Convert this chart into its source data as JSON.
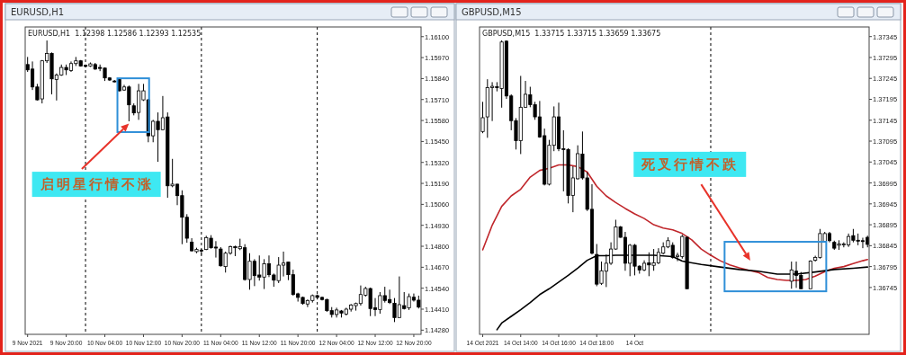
{
  "chart_data": [
    {
      "type": "candlestick",
      "title": "EURUSD,H1",
      "subtitle": "EURUSD,H1  1.12398 1.12586 1.12393 1.12535",
      "x": [
        "2021-11-09T12:00",
        "2021-11-09T13:00",
        "2021-11-09T14:00",
        "2021-11-09T15:00",
        "2021-11-09T16:00",
        "2021-11-09T17:00",
        "2021-11-09T18:00",
        "2021-11-09T19:00",
        "2021-11-09T20:00",
        "2021-11-09T21:00",
        "2021-11-09T22:00",
        "2021-11-09T23:00",
        "2021-11-10T00:00",
        "2021-11-10T01:00",
        "2021-11-10T02:00",
        "2021-11-10T03:00",
        "2021-11-10T04:00",
        "2021-11-10T05:00",
        "2021-11-10T06:00",
        "2021-11-10T07:00",
        "2021-11-10T08:00",
        "2021-11-10T09:00",
        "2021-11-10T10:00",
        "2021-11-10T11:00",
        "2021-11-10T12:00",
        "2021-11-10T13:00",
        "2021-11-10T14:00",
        "2021-11-10T15:00",
        "2021-11-10T16:00",
        "2021-11-10T17:00",
        "2021-11-10T18:00",
        "2021-11-10T19:00",
        "2021-11-10T20:00",
        "2021-11-10T21:00",
        "2021-11-10T22:00",
        "2021-11-10T23:00",
        "2021-11-11T00:00",
        "2021-11-11T01:00",
        "2021-11-11T02:00",
        "2021-11-11T03:00",
        "2021-11-11T04:00",
        "2021-11-11T05:00",
        "2021-11-11T06:00",
        "2021-11-11T07:00",
        "2021-11-11T08:00",
        "2021-11-11T09:00",
        "2021-11-11T10:00",
        "2021-11-11T11:00",
        "2021-11-11T12:00",
        "2021-11-11T13:00",
        "2021-11-11T14:00",
        "2021-11-11T15:00",
        "2021-11-11T16:00",
        "2021-11-11T17:00",
        "2021-11-11T18:00",
        "2021-11-11T19:00",
        "2021-11-11T20:00",
        "2021-11-11T21:00",
        "2021-11-11T22:00",
        "2021-11-11T23:00",
        "2021-11-12T00:00",
        "2021-11-12T01:00",
        "2021-11-12T02:00",
        "2021-11-12T03:00",
        "2021-11-12T04:00",
        "2021-11-12T05:00",
        "2021-11-12T06:00",
        "2021-11-12T07:00",
        "2021-11-12T08:00",
        "2021-11-12T09:00",
        "2021-11-12T10:00",
        "2021-11-12T11:00",
        "2021-11-12T12:00",
        "2021-11-12T13:00",
        "2021-11-12T14:00",
        "2021-11-12T15:00",
        "2021-11-12T16:00",
        "2021-11-12T17:00",
        "2021-11-12T18:00",
        "2021-11-12T19:00",
        "2021-11-12T20:00",
        "2021-11-12T21:00"
      ],
      "ohlc": [
        [
          1.15927,
          1.15974,
          1.15881,
          1.15894
        ],
        [
          1.15899,
          1.15946,
          1.15769,
          1.15788
        ],
        [
          1.15788,
          1.15807,
          1.15704,
          1.15708
        ],
        [
          1.15714,
          1.15955,
          1.15686,
          1.1595
        ],
        [
          1.1595,
          1.16076,
          1.15937,
          1.15996
        ],
        [
          1.15996,
          1.16002,
          1.15742,
          1.15838
        ],
        [
          1.15834,
          1.15872,
          1.15704,
          1.15862
        ],
        [
          1.15862,
          1.15927,
          1.15857,
          1.15909
        ],
        [
          1.15909,
          1.15927,
          1.15862,
          1.15894
        ],
        [
          1.1589,
          1.15946,
          1.15881,
          1.15933
        ],
        [
          1.15933,
          1.15974,
          1.15918,
          1.1595
        ],
        [
          1.1595,
          1.15955,
          1.15914,
          1.15918
        ],
        [
          1.15922,
          1.15927,
          1.15909,
          1.15916
        ],
        [
          1.15918,
          1.1594,
          1.15912,
          1.15931
        ],
        [
          1.15927,
          1.15937,
          1.15894,
          1.15899
        ],
        [
          1.15909,
          1.15927,
          1.15886,
          1.15903
        ],
        [
          1.15905,
          1.15909,
          1.15825,
          1.15844
        ],
        [
          1.15844,
          1.15849,
          1.15825,
          1.15831
        ],
        [
          1.15825,
          1.15831,
          1.15816,
          1.15821
        ],
        [
          1.15834,
          1.15838,
          1.1576,
          1.15764
        ],
        [
          1.15769,
          1.15801,
          1.15764,
          1.15788
        ],
        [
          1.15788,
          1.15797,
          1.15575,
          1.15677
        ],
        [
          1.15671,
          1.15686,
          1.15612,
          1.15627
        ],
        [
          1.1563,
          1.15807,
          1.15584,
          1.15764
        ],
        [
          1.15708,
          1.15807,
          1.15701,
          1.15764
        ],
        [
          1.15708,
          1.15714,
          1.15445,
          1.15485
        ],
        [
          1.15485,
          1.15584,
          1.15445,
          1.15575
        ],
        [
          1.15575,
          1.1563,
          1.15324,
          1.15523
        ],
        [
          1.15523,
          1.15732,
          1.15519,
          1.15597
        ],
        [
          1.15602,
          1.1563,
          1.15101,
          1.15175
        ],
        [
          1.15175,
          1.15342,
          1.15166,
          1.15185
        ],
        [
          1.15185,
          1.15188,
          1.15055,
          1.15114
        ],
        [
          1.15114,
          1.15147,
          1.14813,
          1.1498
        ],
        [
          1.1498,
          1.14999,
          1.14822,
          1.1485
        ],
        [
          1.14826,
          1.1485,
          1.14767,
          1.14772
        ],
        [
          1.14767,
          1.14791,
          1.14757,
          1.1478
        ],
        [
          1.14776,
          1.14783,
          1.14748,
          1.14772
        ],
        [
          1.1478,
          1.14865,
          1.14776,
          1.14854
        ],
        [
          1.1485,
          1.14869,
          1.14785,
          1.14791
        ],
        [
          1.14795,
          1.14832,
          1.1473,
          1.14789
        ],
        [
          1.14783,
          1.14795,
          1.14674,
          1.14679
        ],
        [
          1.14674,
          1.14767,
          1.14637,
          1.14757
        ],
        [
          1.14757,
          1.14804,
          1.14748,
          1.14798
        ],
        [
          1.14798,
          1.14804,
          1.14739,
          1.14791
        ],
        [
          1.14785,
          1.14847,
          1.14776,
          1.14798
        ],
        [
          1.14791,
          1.14813,
          1.14587,
          1.14594
        ],
        [
          1.14594,
          1.14757,
          1.14531,
          1.14707
        ],
        [
          1.14707,
          1.1472,
          1.14553,
          1.14618
        ],
        [
          1.14622,
          1.14743,
          1.14587,
          1.14609
        ],
        [
          1.14609,
          1.1472,
          1.14535,
          1.14692
        ],
        [
          1.14692,
          1.14743,
          1.14609,
          1.14624
        ],
        [
          1.14622,
          1.14631,
          1.14549,
          1.1459
        ],
        [
          1.14587,
          1.14733,
          1.14572,
          1.14683
        ],
        [
          1.14683,
          1.14767,
          1.14613,
          1.14696
        ],
        [
          1.14702,
          1.14702,
          1.1459,
          1.14624
        ],
        [
          1.14624,
          1.14655,
          1.14494,
          1.14501
        ],
        [
          1.14505,
          1.14512,
          1.14457,
          1.14483
        ],
        [
          1.14483,
          1.14488,
          1.14438,
          1.14445
        ],
        [
          1.14442,
          1.1447,
          1.14423,
          1.14464
        ],
        [
          1.14464,
          1.14501,
          1.14451,
          1.14494
        ],
        [
          1.14494,
          1.14501,
          1.1447,
          1.14483
        ],
        [
          1.14483,
          1.14488,
          1.14464,
          1.1447
        ],
        [
          1.1447,
          1.14475,
          1.14393,
          1.14401
        ],
        [
          1.14401,
          1.14423,
          1.14358,
          1.14377
        ],
        [
          1.14377,
          1.14419,
          1.14358,
          1.14405
        ],
        [
          1.14399,
          1.14405,
          1.14358,
          1.14386
        ],
        [
          1.1438,
          1.14419,
          1.14371,
          1.1441
        ],
        [
          1.1441,
          1.14442,
          1.14395,
          1.14436
        ],
        [
          1.14432,
          1.14451,
          1.14401,
          1.14445
        ],
        [
          1.14445,
          1.14557,
          1.14432,
          1.14501
        ],
        [
          1.14497,
          1.14549,
          1.14488,
          1.14538
        ],
        [
          1.14538,
          1.14544,
          1.14367,
          1.14414
        ],
        [
          1.14419,
          1.14479,
          1.14367,
          1.14408
        ],
        [
          1.14408,
          1.14516,
          1.14382,
          1.14494
        ],
        [
          1.14494,
          1.14549,
          1.14451,
          1.14464
        ],
        [
          1.1447,
          1.14531,
          1.14442,
          1.14451
        ],
        [
          1.14447,
          1.14479,
          1.1433,
          1.14358
        ],
        [
          1.14358,
          1.14613,
          1.14358,
          1.14438
        ],
        [
          1.14432,
          1.14516,
          1.14408,
          1.14414
        ],
        [
          1.14419,
          1.14507,
          1.14405,
          1.14488
        ],
        [
          1.14484,
          1.14507,
          1.14457,
          1.14466
        ],
        [
          1.14466,
          1.14494,
          1.14414,
          1.14423
        ]
      ],
      "xlim": [
        "2021-11-09T11:30",
        "2021-11-12T21:30"
      ],
      "ylim": [
        1.14254,
        1.1616
      ],
      "xticks": [
        {
          "value": "2021-11-09T12:00",
          "label": "9 Nov 2021"
        },
        {
          "value": "2021-11-09T20:00",
          "label": "9 Nov 20:00"
        },
        {
          "value": "2021-11-10T04:00",
          "label": "10 Nov 04:00"
        },
        {
          "value": "2021-11-10T12:00",
          "label": "10 Nov 12:00"
        },
        {
          "value": "2021-11-10T20:00",
          "label": "10 Nov 20:00"
        },
        {
          "value": "2021-11-11T04:00",
          "label": "11 Nov 04:00"
        },
        {
          "value": "2021-11-11T12:00",
          "label": "11 Nov 12:00"
        },
        {
          "value": "2021-11-11T20:00",
          "label": "11 Nov 20:00"
        },
        {
          "value": "2021-11-12T04:00",
          "label": "12 Nov 04:00"
        },
        {
          "value": "2021-11-12T12:00",
          "label": "12 Nov 12:00"
        },
        {
          "value": "2021-11-12T20:00",
          "label": "12 Nov 20:00"
        }
      ],
      "yticks": [
        {
          "value": 1.161,
          "label": "1.16100"
        },
        {
          "value": 1.1597,
          "label": "1.15970"
        },
        {
          "value": 1.1584,
          "label": "1.15840"
        },
        {
          "value": 1.1571,
          "label": "1.15710"
        },
        {
          "value": 1.1558,
          "label": "1.15580"
        },
        {
          "value": 1.1545,
          "label": "1.15450"
        },
        {
          "value": 1.1532,
          "label": "1.15320"
        },
        {
          "value": 1.1519,
          "label": "1.15190"
        },
        {
          "value": 1.1506,
          "label": "1.15060"
        },
        {
          "value": 1.1493,
          "label": "1.14930"
        },
        {
          "value": 1.148,
          "label": "1.14800"
        },
        {
          "value": 1.1467,
          "label": "1.14670"
        },
        {
          "value": 1.1454,
          "label": "1.14540"
        },
        {
          "value": 1.1441,
          "label": "1.14410"
        },
        {
          "value": 1.1428,
          "label": "1.14280"
        }
      ],
      "ref_lines": [
        {
          "axis": "x",
          "value": "2021-11-10T00:00",
          "color": "#000000",
          "line_style": "dashed"
        },
        {
          "axis": "x",
          "value": "2021-11-11T00:00",
          "color": "#000000",
          "line_style": "dashed"
        },
        {
          "axis": "x",
          "value": "2021-11-12T00:00",
          "color": "#000000",
          "line_style": "dashed"
        }
      ],
      "annotations": [
        {
          "text": "启明星行情不涨",
          "x": "2021-11-10T09:00",
          "y": 1.15561
        }
      ]
    },
    {
      "type": "candlestick",
      "title": "GBPUSD,M15",
      "subtitle": "GBPUSD,M15  1.33715 1.33715 1.33659 1.33675",
      "x": [
        "2021-10-14T12:00",
        "2021-10-14T12:15",
        "2021-10-14T12:30",
        "2021-10-14T12:45",
        "2021-10-14T13:00",
        "2021-10-14T13:15",
        "2021-10-14T13:30",
        "2021-10-14T13:45",
        "2021-10-14T14:00",
        "2021-10-14T14:15",
        "2021-10-14T14:30",
        "2021-10-14T14:45",
        "2021-10-14T15:00",
        "2021-10-14T15:15",
        "2021-10-14T15:30",
        "2021-10-14T15:45",
        "2021-10-14T16:00",
        "2021-10-14T16:15",
        "2021-10-14T16:30",
        "2021-10-14T16:45",
        "2021-10-14T17:00",
        "2021-10-14T17:15",
        "2021-10-14T17:30",
        "2021-10-14T17:45",
        "2021-10-14T18:00",
        "2021-10-14T18:15",
        "2021-10-14T18:30",
        "2021-10-14T18:45",
        "2021-10-14T19:00",
        "2021-10-14T19:15",
        "2021-10-14T19:30",
        "2021-10-14T19:45",
        "2021-10-14T20:00",
        "2021-10-14T20:15",
        "2021-10-14T20:30",
        "2021-10-14T20:45",
        "2021-10-14T21:00",
        "2021-10-14T21:15",
        "2021-10-14T21:30",
        "2021-10-14T21:45",
        "2021-10-14T22:00",
        "2021-10-14T22:15",
        "2021-10-14T22:30",
        "2021-10-14T22:45",
        "2021-10-15T04:15",
        "2021-10-15T04:30",
        "2021-10-15T04:45",
        "2021-10-15T05:15",
        "2021-10-15T05:30",
        "2021-10-15T05:45",
        "2021-10-15T06:00",
        "2021-10-15T06:15",
        "2021-10-15T06:30",
        "2021-10-15T06:45",
        "2021-10-15T07:00",
        "2021-10-15T07:15",
        "2021-10-15T07:30",
        "2021-10-15T07:45",
        "2021-10-15T08:00",
        "2021-10-15T08:15"
      ],
      "ohlc": [
        [
          1.37118,
          1.37189,
          1.37114,
          1.37151
        ],
        [
          1.37153,
          1.37243,
          1.37103,
          1.37223
        ],
        [
          1.37223,
          1.37236,
          1.37143,
          1.37226
        ],
        [
          1.37225,
          1.37236,
          1.37214,
          1.37223
        ],
        [
          1.37221,
          1.37336,
          1.37175,
          1.37332
        ],
        [
          1.37334,
          1.37336,
          1.37196,
          1.37203
        ],
        [
          1.37203,
          1.37207,
          1.37121,
          1.37144
        ],
        [
          1.37144,
          1.3715,
          1.37075,
          1.37096
        ],
        [
          1.37096,
          1.37251,
          1.37064,
          1.37176
        ],
        [
          1.37176,
          1.37239,
          1.37175,
          1.37207
        ],
        [
          1.37206,
          1.37225,
          1.37176,
          1.37182
        ],
        [
          1.37182,
          1.37189,
          1.37146,
          1.37153
        ],
        [
          1.37153,
          1.37191,
          1.37103,
          1.37105
        ],
        [
          1.37108,
          1.37125,
          1.36989,
          1.36992
        ],
        [
          1.36992,
          1.37098,
          1.36989,
          1.37085
        ],
        [
          1.37085,
          1.37178,
          1.37071,
          1.37153
        ],
        [
          1.37153,
          1.37187,
          1.37071,
          1.37077
        ],
        [
          1.37077,
          1.37121,
          1.36975,
          1.37075
        ],
        [
          1.37075,
          1.37078,
          1.36946,
          1.36965
        ],
        [
          1.36965,
          1.37035,
          1.36925,
          1.37007
        ],
        [
          1.37005,
          1.37085,
          1.37003,
          1.37065
        ],
        [
          1.37064,
          1.37118,
          1.37003,
          1.37007
        ],
        [
          1.37007,
          1.37021,
          1.36928,
          1.36932
        ],
        [
          1.36932,
          1.36992,
          1.36824,
          1.36827
        ],
        [
          1.36824,
          1.36849,
          1.36748,
          1.36753
        ],
        [
          1.36755,
          1.36807,
          1.36751,
          1.36785
        ],
        [
          1.36784,
          1.36824,
          1.36746,
          1.36803
        ],
        [
          1.36803,
          1.36853,
          1.36799,
          1.36837
        ],
        [
          1.36837,
          1.36907,
          1.36835,
          1.3689
        ],
        [
          1.3689,
          1.36892,
          1.36864,
          1.36865
        ],
        [
          1.36865,
          1.36878,
          1.36785,
          1.36803
        ],
        [
          1.36803,
          1.36849,
          1.36772,
          1.36846
        ],
        [
          1.36846,
          1.36849,
          1.36774,
          1.36796
        ],
        [
          1.36796,
          1.36798,
          1.36778,
          1.36787
        ],
        [
          1.36787,
          1.3681,
          1.36784,
          1.36803
        ],
        [
          1.36804,
          1.36829,
          1.36772,
          1.36799
        ],
        [
          1.36798,
          1.36837,
          1.36785,
          1.36804
        ],
        [
          1.36804,
          1.36839,
          1.36801,
          1.36829
        ],
        [
          1.36827,
          1.36853,
          1.36824,
          1.36842
        ],
        [
          1.36842,
          1.36865,
          1.36839,
          1.36857
        ],
        [
          1.36846,
          1.36853,
          1.36814,
          1.36817
        ],
        [
          1.36819,
          1.36828,
          1.36808,
          1.36822
        ],
        [
          1.36819,
          1.36871,
          1.36814,
          1.36867
        ],
        [
          1.36865,
          1.36867,
          1.36742,
          1.36742
        ],
        [
          1.3676,
          1.36807,
          1.36742,
          1.36787
        ],
        [
          1.36784,
          1.36807,
          1.36744,
          1.36774
        ],
        [
          1.36774,
          1.36782,
          1.36742,
          1.36742
        ],
        [
          1.36742,
          1.3681,
          1.36742,
          1.36808
        ],
        [
          1.3681,
          1.36821,
          1.36807,
          1.36817
        ],
        [
          1.36817,
          1.36885,
          1.36814,
          1.36874
        ],
        [
          1.36855,
          1.36878,
          1.36853,
          1.36874
        ],
        [
          1.36874,
          1.36878,
          1.36853,
          1.36857
        ],
        [
          1.36853,
          1.36857,
          1.36835,
          1.36839
        ],
        [
          1.36846,
          1.36858,
          1.36835,
          1.36849
        ],
        [
          1.36847,
          1.36853,
          1.36841,
          1.36849
        ],
        [
          1.36847,
          1.36874,
          1.36842,
          1.36867
        ],
        [
          1.36869,
          1.36885,
          1.36853,
          1.36858
        ],
        [
          1.36858,
          1.36874,
          1.36846,
          1.36857
        ],
        [
          1.36857,
          1.36864,
          1.36839,
          1.36855
        ],
        [
          1.36865,
          1.36869,
          1.36841,
          1.36848
        ]
      ],
      "series": [
        {
          "type": "line",
          "color": "#c0262b",
          "x": [
            "2021-10-14T12:00",
            "2021-10-14T12:30",
            "2021-10-14T13:00",
            "2021-10-14T13:30",
            "2021-10-14T14:00",
            "2021-10-14T14:30",
            "2021-10-14T15:00",
            "2021-10-14T15:30",
            "2021-10-14T16:00",
            "2021-10-14T16:30",
            "2021-10-14T17:00",
            "2021-10-14T17:30",
            "2021-10-14T18:00",
            "2021-10-14T18:30",
            "2021-10-14T19:00",
            "2021-10-14T19:30",
            "2021-10-14T20:00",
            "2021-10-14T20:30",
            "2021-10-14T21:00",
            "2021-10-14T21:30",
            "2021-10-14T22:00",
            "2021-10-14T22:30",
            "2021-10-14T23:00",
            "2021-10-14T23:30",
            "2021-10-15T00:00",
            "2021-10-15T00:30",
            "2021-10-15T01:00",
            "2021-10-15T01:30",
            "2021-10-15T02:00",
            "2021-10-15T02:30",
            "2021-10-15T03:00",
            "2021-10-15T03:30",
            "2021-10-15T04:00",
            "2021-10-15T04:30",
            "2021-10-15T05:00",
            "2021-10-15T05:30",
            "2021-10-15T06:00",
            "2021-10-15T06:30",
            "2021-10-15T07:00",
            "2021-10-15T07:30",
            "2021-10-15T08:00",
            "2021-10-15T08:15"
          ],
          "values": [
            1.36835,
            1.36894,
            1.36939,
            1.36964,
            1.3698,
            1.37009,
            1.37025,
            1.3703,
            1.37038,
            1.37038,
            1.37034,
            1.37021,
            1.36987,
            1.36964,
            1.36948,
            1.36934,
            1.36921,
            1.3691,
            1.36895,
            1.36887,
            1.36883,
            1.36874,
            1.36859,
            1.36837,
            1.36822,
            1.36809,
            1.36799,
            1.36792,
            1.36786,
            1.36781,
            1.36769,
            1.36764,
            1.36762,
            1.36762,
            1.36764,
            1.36772,
            1.36783,
            1.36791,
            1.36795,
            1.36802,
            1.36809,
            1.36812
          ]
        },
        {
          "type": "line",
          "color": "#000000",
          "x": [
            "2021-10-14T12:45",
            "2021-10-14T13:00",
            "2021-10-14T13:30",
            "2021-10-14T14:00",
            "2021-10-14T14:30",
            "2021-10-14T15:00",
            "2021-10-14T15:30",
            "2021-10-14T16:00",
            "2021-10-14T16:30",
            "2021-10-14T17:00",
            "2021-10-14T17:30",
            "2021-10-14T18:00",
            "2021-10-14T18:30",
            "2021-10-14T19:00",
            "2021-10-14T20:00",
            "2021-10-14T21:00",
            "2021-10-14T22:00",
            "2021-10-14T22:30",
            "2021-10-14T23:30",
            "2021-10-15T00:30",
            "2021-10-15T01:30",
            "2021-10-15T02:30",
            "2021-10-15T03:30",
            "2021-10-15T04:30",
            "2021-10-15T05:30",
            "2021-10-15T06:30",
            "2021-10-15T07:30",
            "2021-10-15T08:15"
          ],
          "values": [
            1.36644,
            1.3666,
            1.36676,
            1.36692,
            1.36709,
            1.36728,
            1.36742,
            1.36758,
            1.36774,
            1.36791,
            1.3681,
            1.36821,
            1.36821,
            1.36822,
            1.36822,
            1.36822,
            1.36819,
            1.36808,
            1.368,
            1.36794,
            1.36788,
            1.36784,
            1.36777,
            1.36777,
            1.36782,
            1.36788,
            1.36791,
            1.36794
          ]
        }
      ],
      "xlim": [
        "2021-10-14T11:50",
        "2021-10-15T08:20"
      ],
      "ylim": [
        1.36633,
        1.37368
      ],
      "xticks": [
        {
          "value": "2021-10-14T12:00",
          "label": "14 Oct 2021"
        },
        {
          "value": "2021-10-14T14:00",
          "label": "14 Oct 14:00"
        },
        {
          "value": "2021-10-14T16:00",
          "label": "14 Oct 16:00"
        },
        {
          "value": "2021-10-14T18:00",
          "label": "14 Oct 18:00"
        },
        {
          "value": "2021-10-14T20:00",
          "label": "14 Oct"
        }
      ],
      "yticks": [
        1.37345,
        1.37295,
        1.37245,
        1.37195,
        1.37145,
        1.37095,
        1.37045,
        1.36995,
        1.36945,
        1.36895,
        1.36845,
        1.36795,
        1.36745
      ],
      "ref_lines": [
        {
          "axis": "x",
          "value": "2021-10-15T00:00",
          "color": "#000000",
          "line_style": "dashed"
        }
      ],
      "annotations": [
        "死叉行情不跌"
      ]
    }
  ]
}
